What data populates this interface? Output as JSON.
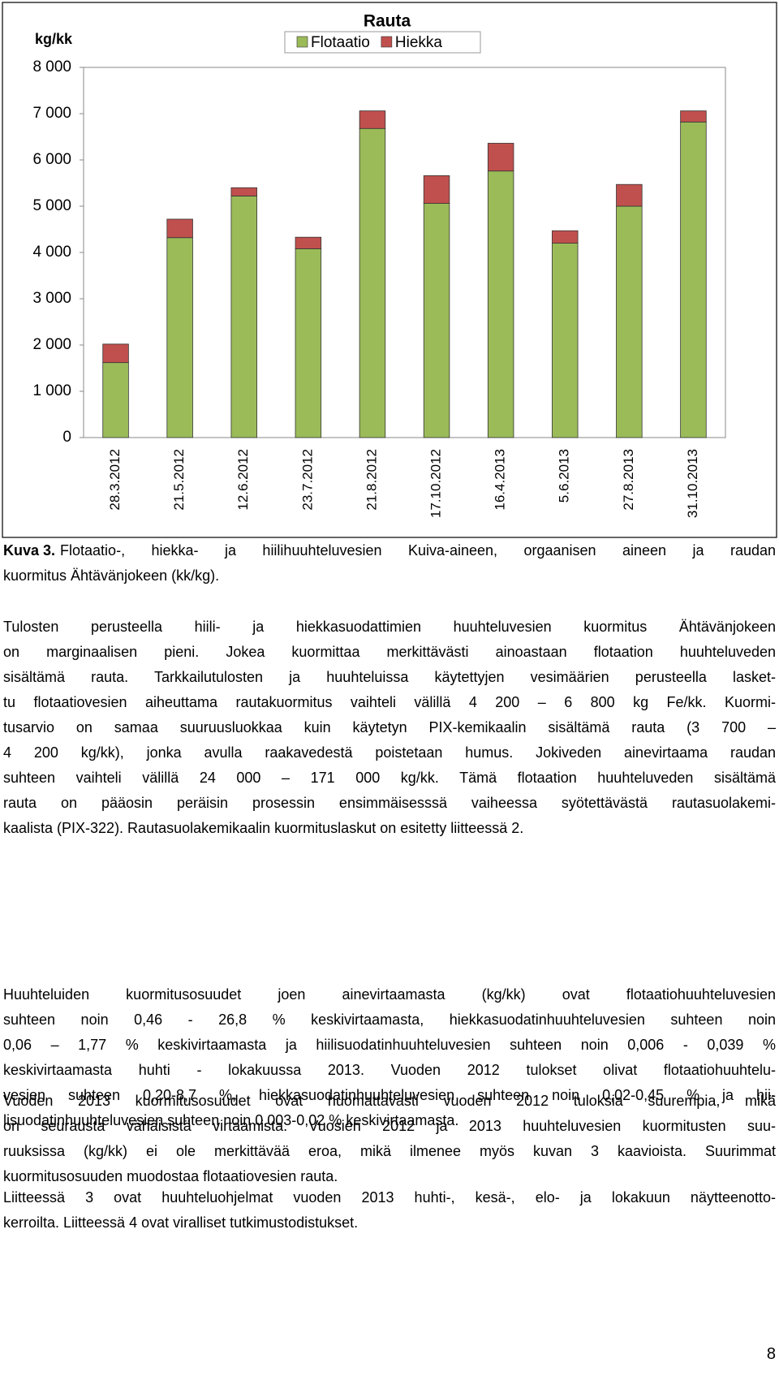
{
  "chart_data": {
    "type": "stacked_bar",
    "title": "Rauta",
    "ylabel": "kg/kk",
    "categories": [
      "28.3.2012",
      "21.5.2012",
      "12.6.2012",
      "23.7.2012",
      "21.8.2012",
      "17.10.2012",
      "16.4.2013",
      "5.6.2013",
      "27.8.2013",
      "31.10.2013"
    ],
    "series": [
      {
        "name": "Flotaatio",
        "color": "#9bbb59",
        "values": [
          1620,
          4320,
          5220,
          4080,
          6680,
          5060,
          5760,
          4200,
          5000,
          6820
        ]
      },
      {
        "name": "Hiekka",
        "color": "#c0504d",
        "values": [
          400,
          400,
          180,
          250,
          380,
          600,
          600,
          270,
          470,
          240
        ]
      }
    ],
    "ylim": [
      0,
      8000
    ],
    "yticks": [
      0,
      {
        "value": 1000,
        "label": "1 000"
      },
      {
        "value": 2000,
        "label": "2 000"
      },
      {
        "value": 3000,
        "label": "3 000"
      },
      {
        "value": 4000,
        "label": "4 000"
      },
      {
        "value": 5000,
        "label": "5 000"
      },
      {
        "value": 6000,
        "label": "6 000"
      },
      {
        "value": 7000,
        "label": "7 000"
      },
      {
        "value": 8000,
        "label": "8 000"
      }
    ],
    "grid": false,
    "legend": "top"
  },
  "caption": {
    "label": "Kuva 3.",
    "lines": [
      "Flotaatio-, hiekka- ja hiilihuuhteluvesien Kuiva-aineen, orgaanisen aineen ja raudan",
      "kuormitus Ähtävänjokeen (kk/kg)."
    ]
  },
  "paragraphs": [
    [
      "Tulosten perusteella hiili- ja hiekkasuodattimien huuhteluvesien kuormitus Ähtävänjokeen",
      "on marginaalisen pieni. Jokea kuormittaa merkittävästi ainoastaan flotaation huuhteluveden",
      "sisältämä rauta. Tarkkailutulosten ja huuhteluissa käytettyjen vesimäärien perusteella lasket-",
      "tu flotaatiovesien aiheuttama rautakuormitus vaihteli välillä 4 200 – 6 800 kg Fe/kk. Kuormi-",
      "tusarvio on samaa suuruusluokkaa kuin käytetyn PIX-kemikaalin sisältämä rauta (3 700 –",
      "4 200 kg/kk), jonka avulla raakavedestä poistetaan humus. Jokiveden ainevirtaama raudan",
      "suhteen vaihteli välillä 24 000 – 171 000 kg/kk. Tämä flotaation huuhteluveden sisältämä",
      "rauta on pääosin peräisin prosessin ensimmäisesssä vaiheessa syötettävästä rautasuolakemi-",
      "kaalista (PIX-322). Rautasuolakemikaalin kuormituslaskut on esitetty liitteessä 2."
    ],
    [
      "Huuhteluiden kuormitusosuudet joen ainevirtaamasta (kg/kk) ovat flotaatiohuuhteluvesien",
      "suhteen noin 0,46 - 26,8 % keskivirtaamasta, hiekkasuodatinhuuhteluvesien suhteen noin",
      "0,06 – 1,77 % keskivirtaamasta ja hiilisuodatinhuuhteluvesien suhteen noin 0,006 - 0,039 %",
      "keskivirtaamasta huhti - lokakuussa 2013. Vuoden 2012 tulokset olivat flotaatiohuuhtelu-",
      "vesien suhteen 0,20-8,7 %, hiekkasuodatinhuuhteluvesien suhteen noin 0,02-0,45 % ja hii-",
      "lisuodatinhuuhteluvesien suhteen noin 0,003-0,02 % keskivirtaamasta."
    ],
    [
      "Vuoden 2013 kuormitusosuudet ovat huomattavasti vuoden 2012 tuloksia suurempia, mikä",
      "on seurausta vähäisistä virtaamista. Vuosien 2012 ja 2013 huuhteluvesien kuormitusten suu-",
      "ruuksissa (kg/kk) ei ole merkittävää eroa, mikä ilmenee myös kuvan 3 kaavioista. Suurimmat",
      "kuormitusosuuden muodostaa flotaatiovesien rauta."
    ],
    [
      "Liitteessä 3 ovat huuhteluohjelmat vuoden 2013 huhti-, kesä-, elo- ja lokakuun näytteenotto-",
      "kerroilta. Liitteessä 4 ovat viralliset tutkimustodistukset."
    ]
  ],
  "page_number": "8"
}
